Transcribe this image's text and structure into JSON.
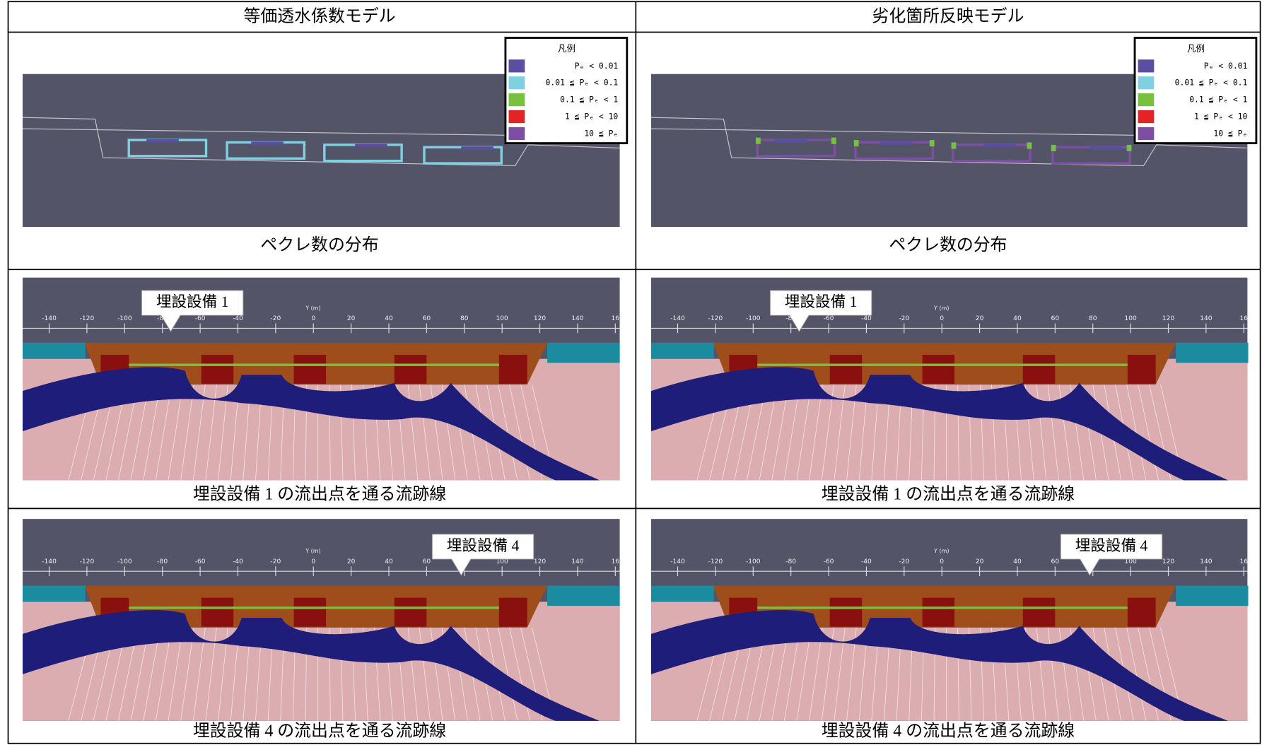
{
  "table": {
    "header": [
      "等価透水係数モデル",
      "劣化箇所反映モデル"
    ],
    "rows": [
      {
        "caption": [
          "ペクレ数の分布",
          "ペクレ数の分布"
        ]
      },
      {
        "caption": [
          "埋設設備 1 の流出点を通る流跡線",
          "埋設設備 1 の流出点を通る流跡線"
        ],
        "callout": [
          "埋設設備 1",
          "埋設設備 1"
        ]
      },
      {
        "caption": [
          "埋設設備 4 の流出点を通る流跡線",
          "埋設設備 4 の流出点を通る流跡線"
        ],
        "callout": [
          "埋設設備 4",
          "埋設設備 4"
        ]
      }
    ]
  },
  "legend": {
    "title": "凡例",
    "items": [
      {
        "label": "Pₑ < 0.01",
        "color": "#5a4ea3"
      },
      {
        "label": "0.01 ≦ Pₑ < 0.1",
        "color": "#7fd0e0"
      },
      {
        "label": "0.1 ≦ Pₑ < 1",
        "color": "#78c040"
      },
      {
        "label": "1 ≦ Pₑ < 10",
        "color": "#e42424"
      },
      {
        "label": "10 ≦ Pₑ",
        "color": "#7d4fa3"
      }
    ]
  },
  "axis": {
    "label": "Y (m)",
    "ticks": [
      "-140",
      "-120",
      "-100",
      "-80",
      "-60",
      "-40",
      "-20",
      "0",
      "20",
      "40",
      "60",
      "80",
      "100",
      "120",
      "140",
      "16"
    ]
  }
}
